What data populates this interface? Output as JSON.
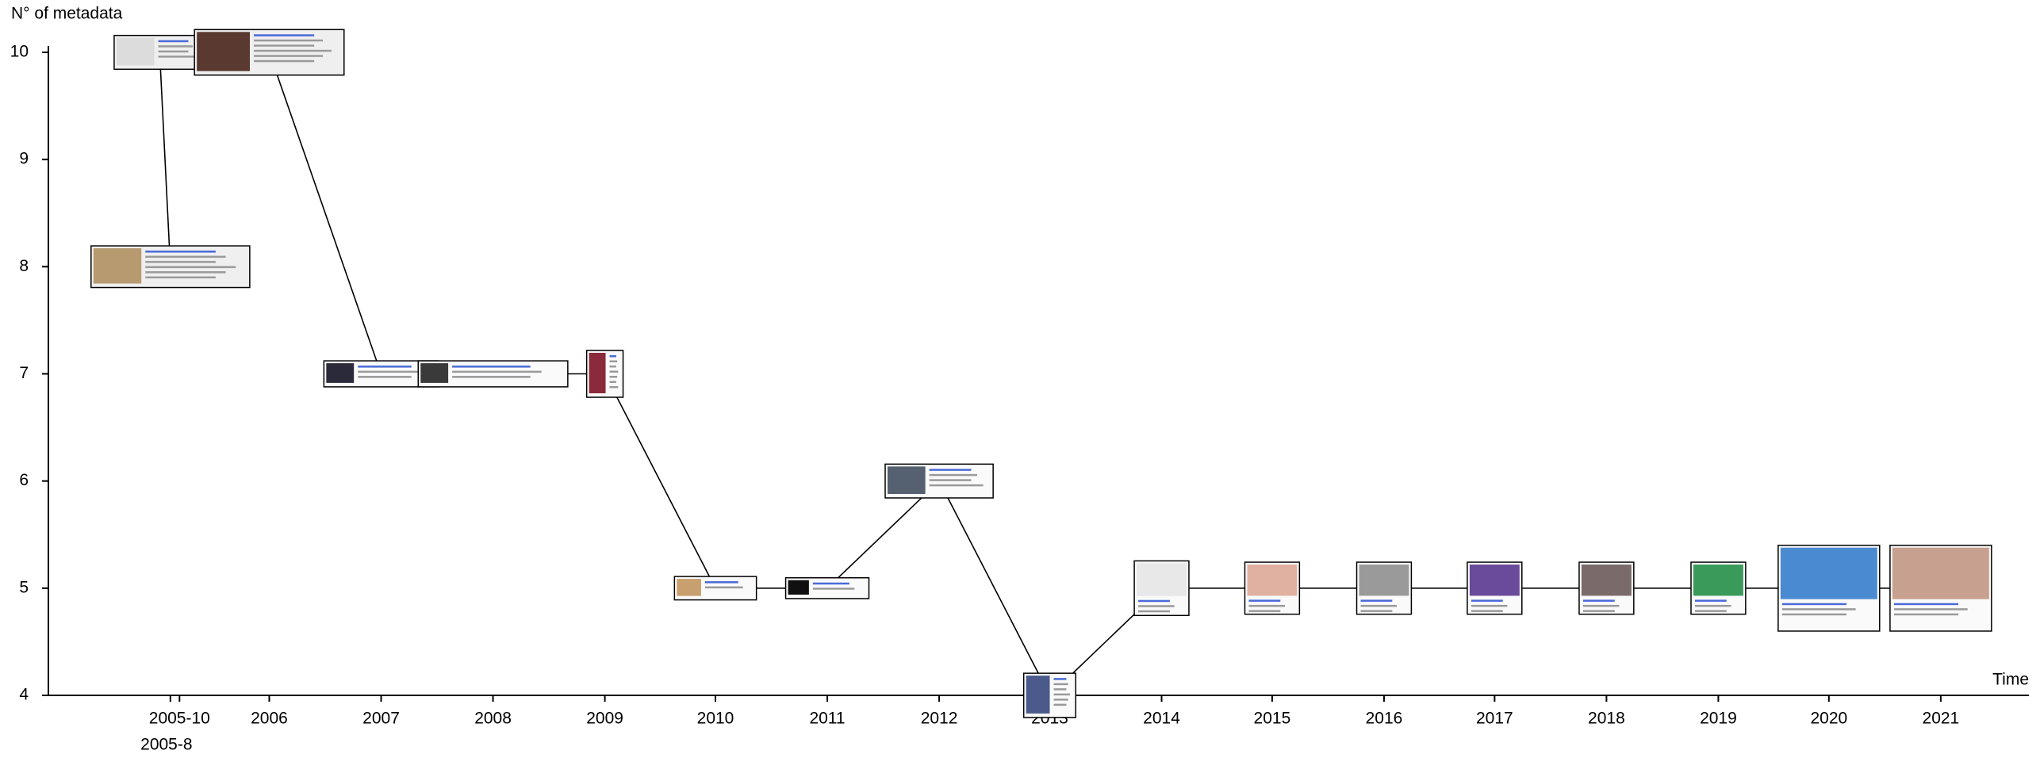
{
  "chart_data": {
    "type": "line",
    "y_label": "N° of metadata",
    "x_label": "Time",
    "x": [
      "2005-8",
      "2005-10",
      "2006",
      "2007",
      "2008",
      "2009",
      "2010",
      "2011",
      "2012",
      "2013",
      "2014",
      "2015",
      "2016",
      "2017",
      "2018",
      "2019",
      "2020",
      "2021"
    ],
    "values": [
      8,
      10,
      10,
      7,
      7,
      7,
      5,
      5,
      6,
      4,
      5,
      5,
      5,
      5,
      5,
      5,
      5,
      5
    ],
    "ylim": [
      4,
      10
    ],
    "yticks": [
      4,
      5,
      6,
      7,
      8,
      9,
      10
    ],
    "color": "#000000"
  }
}
